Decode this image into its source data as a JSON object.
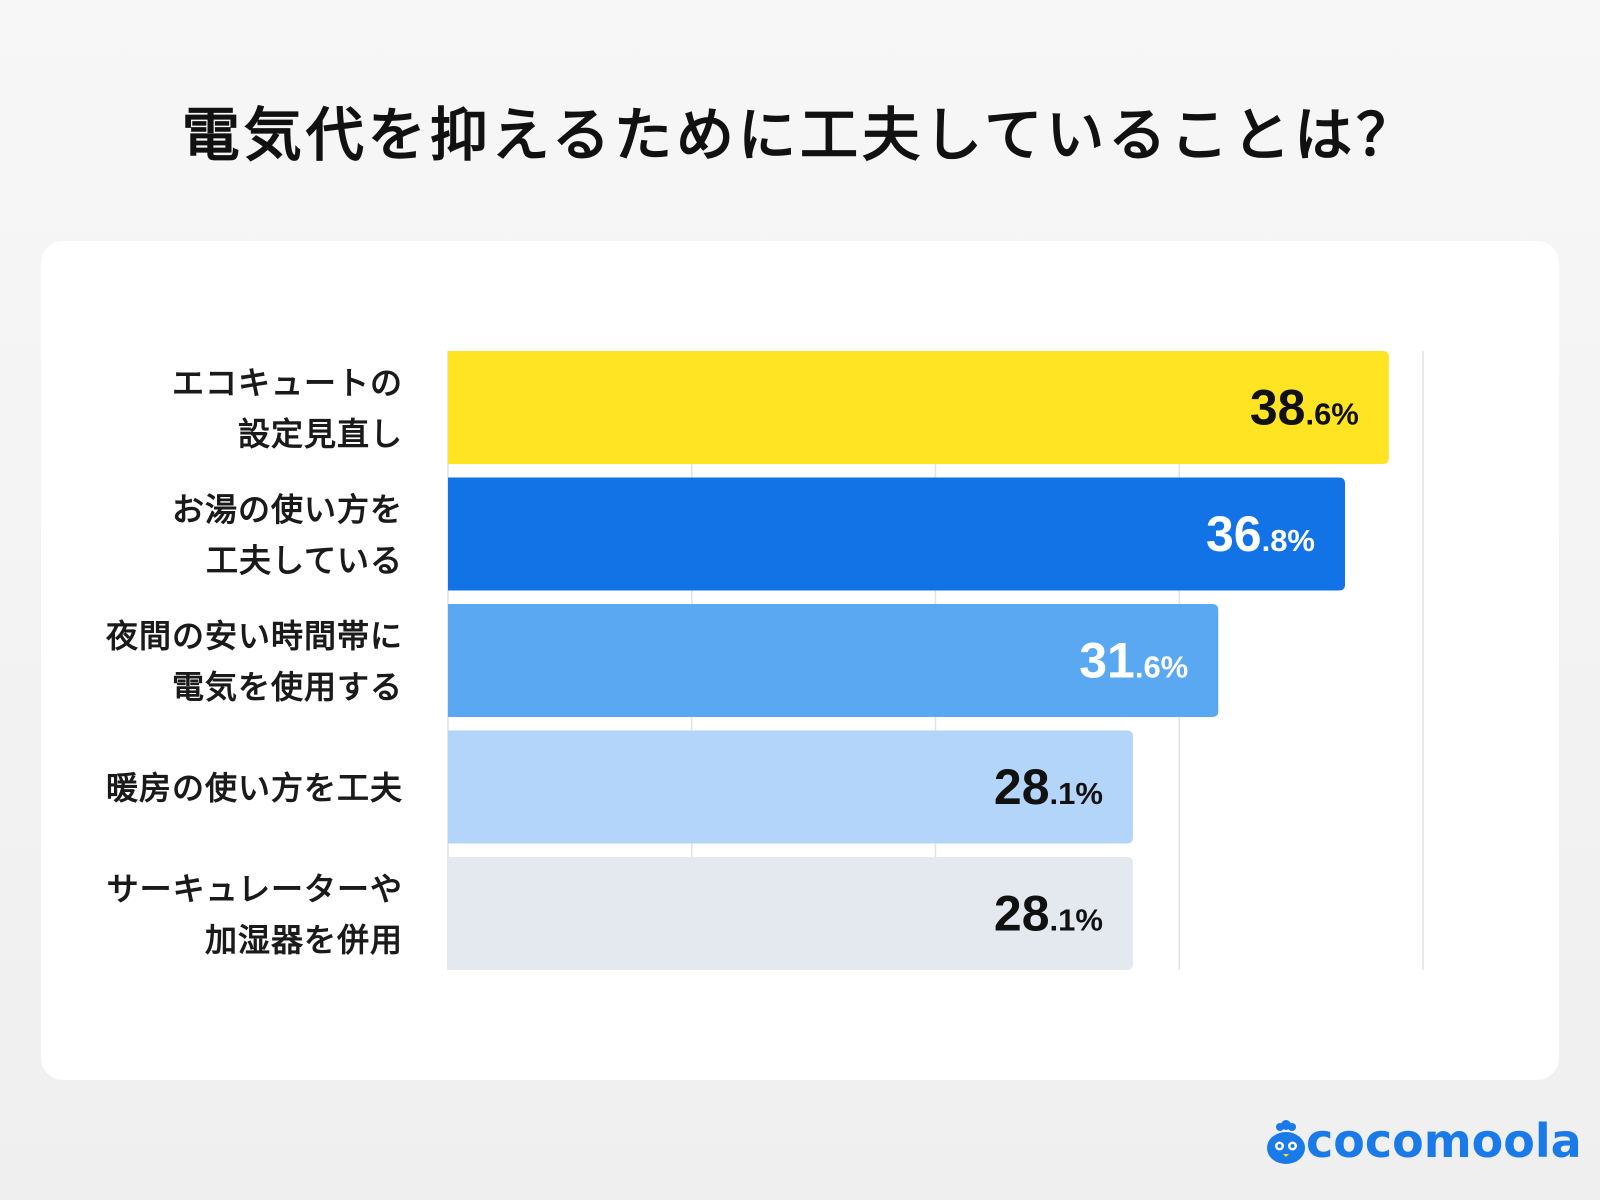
{
  "title": "電気代を抑えるために工夫していることは？",
  "chart_data": {
    "type": "bar",
    "orientation": "horizontal",
    "title": "電気代を抑えるために工夫していることは？",
    "categories": [
      [
        "エコキュートの",
        "設定見直し"
      ],
      [
        "お湯の使い方を",
        "工夫している"
      ],
      [
        "夜間の安い時間帯に",
        "電気を使用する"
      ],
      [
        "暖房の使い方を工夫"
      ],
      [
        "サーキュレーターや",
        "加湿器を併用"
      ]
    ],
    "values": [
      38.6,
      36.8,
      31.6,
      28.1,
      28.1
    ],
    "value_labels": [
      "38.6%",
      "36.8%",
      "31.6%",
      "28.1%",
      "28.1%"
    ],
    "bar_colors": [
      "#ffe423",
      "#1273e6",
      "#5ba8f2",
      "#b4d5fa",
      "#e4e9f0"
    ],
    "label_colors": [
      "#111111",
      "#ffffff",
      "#ffffff",
      "#111111",
      "#111111"
    ],
    "xlim": [
      0,
      40
    ],
    "gridlines": [
      0,
      10,
      20,
      30,
      40
    ],
    "grid": true,
    "x_tick_labels_shown": false
  },
  "logo": {
    "text": "cocomoola",
    "color": "#1a7ae8"
  }
}
